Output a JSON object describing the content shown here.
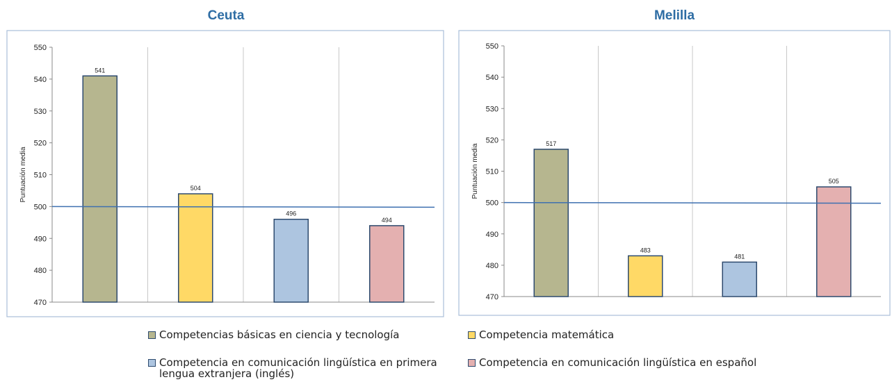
{
  "colors": {
    "frame": "#a9bfd9",
    "grid": "#c8c8c8",
    "bar_stroke": "#2d4a6e",
    "reference_line": "#3e70b0",
    "title": "#2e6da4"
  },
  "chart_data": [
    {
      "type": "bar",
      "title": "Ceuta",
      "ylabel": "Puntuación media",
      "ylim": [
        470,
        550
      ],
      "yticks": [
        470,
        480,
        490,
        500,
        510,
        520,
        530,
        540,
        550
      ],
      "reference_value": 500,
      "grid": "vertical",
      "series": [
        {
          "name": "Competencias básicas en ciencia y tecnología",
          "value": 541,
          "label": "541",
          "color": "#b6b68f"
        },
        {
          "name": "Competencia matemática",
          "value": 504,
          "label": "504",
          "color": "#ffd966"
        },
        {
          "name": "Competencia en comunicación lingüística en primera lengua extranjera (inglés)",
          "value": 496,
          "label": "496",
          "color": "#adc5e0"
        },
        {
          "name": "Competencia en comunicación lingüística en español",
          "value": 494,
          "label": "494",
          "color": "#e4b0b0"
        }
      ]
    },
    {
      "type": "bar",
      "title": "Melilla",
      "ylabel": "Puntuación media",
      "ylim": [
        470,
        550
      ],
      "yticks": [
        470,
        480,
        490,
        500,
        510,
        520,
        530,
        540,
        550
      ],
      "reference_value": 500,
      "grid": "vertical",
      "series": [
        {
          "name": "Competencias básicas en ciencia y tecnología",
          "value": 517,
          "label": "517",
          "color": "#b6b68f"
        },
        {
          "name": "Competencia matemática",
          "value": 483,
          "label": "483",
          "color": "#ffd966"
        },
        {
          "name": "Competencia en comunicación lingüística en primera lengua extranjera (inglés)",
          "value": 481,
          "label": "481",
          "color": "#adc5e0"
        },
        {
          "name": "Competencia en comunicación lingüística en español",
          "value": 505,
          "label": "505",
          "color": "#e4b0b0"
        }
      ]
    }
  ],
  "legend": [
    {
      "label": "Competencias básicas en ciencia y tecnología",
      "color": "#b6b68f"
    },
    {
      "label": "Competencia matemática",
      "color": "#ffd966"
    },
    {
      "label": "Competencia en comunicación lingüística en primera lengua extranjera (inglés)",
      "color": "#adc5e0"
    },
    {
      "label": "Competencia en comunicación lingüística en español",
      "color": "#e4b0b0"
    }
  ]
}
